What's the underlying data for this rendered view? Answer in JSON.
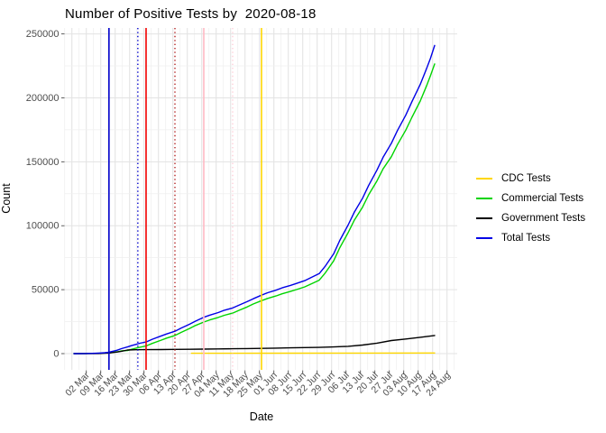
{
  "chart_data": {
    "type": "line",
    "title": "Number of Positive Tests by  2020-08-18",
    "xlabel": "Date",
    "ylabel": "Count",
    "background": "#FFFFFF",
    "grid": "on",
    "legend_position": "right",
    "ylim": [
      0,
      250000
    ],
    "y_ticks": [
      0,
      50000,
      100000,
      150000,
      200000,
      250000
    ],
    "y_tick_labels": [
      "0",
      "50000",
      "100000",
      "150000",
      "200000",
      "250000"
    ],
    "x_first_tick_date": "2020-03-02",
    "x_tick_interval_days": 7,
    "x_tick_labels": [
      "02 Mar",
      "09 Mar",
      "16 Mar",
      "23 Mar",
      "30 Mar",
      "06 Apr",
      "13 Apr",
      "20 Apr",
      "27 Apr",
      "04 May",
      "11 May",
      "18 May",
      "25 May",
      "01 Jun",
      "08 Jun",
      "15 Jun",
      "22 Jun",
      "29 Jun",
      "06 Jul",
      "13 Jul",
      "20 Jul",
      "27 Jul",
      "03 Aug",
      "10 Aug",
      "17 Aug",
      "24 Aug"
    ],
    "vlines": [
      {
        "date": "2020-03-13",
        "color": "#0000CC",
        "style": "solid"
      },
      {
        "date": "2020-03-27",
        "color": "#0000CC",
        "style": "dotted"
      },
      {
        "date": "2020-03-31",
        "color": "#F20000",
        "style": "solid"
      },
      {
        "date": "2020-04-14",
        "color": "#B22222",
        "style": "dotted"
      },
      {
        "date": "2020-04-28",
        "color": "#FFB9C4",
        "style": "solid"
      },
      {
        "date": "2020-05-12",
        "color": "#FFCFD8",
        "style": "dotted"
      },
      {
        "date": "2020-05-26",
        "color": "#FFD700",
        "style": "solid"
      }
    ],
    "series": [
      {
        "name": "CDC Tests",
        "color": "#FFD700",
        "points": [
          [
            "2020-04-22",
            300
          ],
          [
            "2020-05-12",
            300
          ],
          [
            "2020-06-09",
            350
          ],
          [
            "2020-07-14",
            400
          ],
          [
            "2020-08-18",
            500
          ]
        ]
      },
      {
        "name": "Commercial Tests",
        "color": "#00D400",
        "points": [
          [
            "2020-02-25",
            0
          ],
          [
            "2020-03-01",
            80
          ],
          [
            "2020-03-05",
            150
          ],
          [
            "2020-03-08",
            300
          ],
          [
            "2020-03-11",
            450
          ],
          [
            "2020-03-13",
            700
          ],
          [
            "2020-03-15",
            1000
          ],
          [
            "2020-03-17",
            1400
          ],
          [
            "2020-03-19",
            2100
          ],
          [
            "2020-03-22",
            2400
          ],
          [
            "2020-03-24",
            3400
          ],
          [
            "2020-03-26",
            4200
          ],
          [
            "2020-03-28",
            5000
          ],
          [
            "2020-03-31",
            6000
          ],
          [
            "2020-04-03",
            8000
          ],
          [
            "2020-04-07",
            10300
          ],
          [
            "2020-04-10",
            12100
          ],
          [
            "2020-04-14",
            14200
          ],
          [
            "2020-04-17",
            16600
          ],
          [
            "2020-04-21",
            19600
          ],
          [
            "2020-04-24",
            22000
          ],
          [
            "2020-04-28",
            24700
          ],
          [
            "2020-05-01",
            26400
          ],
          [
            "2020-05-05",
            28300
          ],
          [
            "2020-05-08",
            30000
          ],
          [
            "2020-05-12",
            31700
          ],
          [
            "2020-05-15",
            33800
          ],
          [
            "2020-05-19",
            36500
          ],
          [
            "2020-05-22",
            38800
          ],
          [
            "2020-05-26",
            41400
          ],
          [
            "2020-05-29",
            43200
          ],
          [
            "2020-06-02",
            45100
          ],
          [
            "2020-06-05",
            46800
          ],
          [
            "2020-06-09",
            48600
          ],
          [
            "2020-06-12",
            50100
          ],
          [
            "2020-06-16",
            52200
          ],
          [
            "2020-06-19",
            54400
          ],
          [
            "2020-06-23",
            57400
          ],
          [
            "2020-06-26",
            63200
          ],
          [
            "2020-06-30",
            72500
          ],
          [
            "2020-07-03",
            82800
          ],
          [
            "2020-07-07",
            94500
          ],
          [
            "2020-07-10",
            104200
          ],
          [
            "2020-07-14",
            114500
          ],
          [
            "2020-07-17",
            124200
          ],
          [
            "2020-07-21",
            135000
          ],
          [
            "2020-07-24",
            144500
          ],
          [
            "2020-07-28",
            154000
          ],
          [
            "2020-07-31",
            163500
          ],
          [
            "2020-08-04",
            174800
          ],
          [
            "2020-08-07",
            184800
          ],
          [
            "2020-08-11",
            197500
          ],
          [
            "2020-08-14",
            209000
          ],
          [
            "2020-08-16",
            217500
          ],
          [
            "2020-08-18",
            226500
          ]
        ]
      },
      {
        "name": "Government Tests",
        "color": "#000000",
        "points": [
          [
            "2020-02-25",
            0
          ],
          [
            "2020-03-01",
            0
          ],
          [
            "2020-03-08",
            100
          ],
          [
            "2020-03-11",
            250
          ],
          [
            "2020-03-13",
            400
          ],
          [
            "2020-03-15",
            900
          ],
          [
            "2020-03-17",
            1300
          ],
          [
            "2020-03-19",
            1800
          ],
          [
            "2020-03-22",
            2800
          ],
          [
            "2020-03-26",
            3000
          ],
          [
            "2020-03-31",
            3100
          ],
          [
            "2020-04-07",
            3200
          ],
          [
            "2020-04-14",
            3300
          ],
          [
            "2020-04-21",
            3400
          ],
          [
            "2020-04-28",
            3500
          ],
          [
            "2020-05-05",
            3650
          ],
          [
            "2020-05-12",
            3800
          ],
          [
            "2020-05-19",
            3950
          ],
          [
            "2020-05-26",
            4100
          ],
          [
            "2020-06-02",
            4300
          ],
          [
            "2020-06-09",
            4500
          ],
          [
            "2020-06-16",
            4700
          ],
          [
            "2020-06-23",
            4900
          ],
          [
            "2020-06-30",
            5200
          ],
          [
            "2020-07-07",
            5700
          ],
          [
            "2020-07-14",
            6700
          ],
          [
            "2020-07-21",
            8200
          ],
          [
            "2020-07-28",
            10200
          ],
          [
            "2020-08-04",
            11400
          ],
          [
            "2020-08-11",
            12800
          ],
          [
            "2020-08-18",
            14200
          ]
        ]
      },
      {
        "name": "Total Tests",
        "color": "#0000E6",
        "points": [
          [
            "2020-02-25",
            0
          ],
          [
            "2020-03-01",
            80
          ],
          [
            "2020-03-05",
            200
          ],
          [
            "2020-03-08",
            400
          ],
          [
            "2020-03-11",
            700
          ],
          [
            "2020-03-13",
            1100
          ],
          [
            "2020-03-15",
            1900
          ],
          [
            "2020-03-17",
            2700
          ],
          [
            "2020-03-19",
            3900
          ],
          [
            "2020-03-22",
            5200
          ],
          [
            "2020-03-24",
            6300
          ],
          [
            "2020-03-26",
            7200
          ],
          [
            "2020-03-28",
            8100
          ],
          [
            "2020-03-31",
            9100
          ],
          [
            "2020-04-03",
            11200
          ],
          [
            "2020-04-07",
            13600
          ],
          [
            "2020-04-10",
            15400
          ],
          [
            "2020-04-14",
            17500
          ],
          [
            "2020-04-17",
            19900
          ],
          [
            "2020-04-21",
            22900
          ],
          [
            "2020-04-24",
            25400
          ],
          [
            "2020-04-28",
            28400
          ],
          [
            "2020-05-01",
            30100
          ],
          [
            "2020-05-05",
            32100
          ],
          [
            "2020-05-08",
            33900
          ],
          [
            "2020-05-12",
            35700
          ],
          [
            "2020-05-15",
            37800
          ],
          [
            "2020-05-19",
            40600
          ],
          [
            "2020-05-22",
            42900
          ],
          [
            "2020-05-26",
            45700
          ],
          [
            "2020-05-29",
            47600
          ],
          [
            "2020-06-02",
            49600
          ],
          [
            "2020-06-05",
            51400
          ],
          [
            "2020-06-09",
            53300
          ],
          [
            "2020-06-12",
            54900
          ],
          [
            "2020-06-16",
            57100
          ],
          [
            "2020-06-19",
            59400
          ],
          [
            "2020-06-23",
            62600
          ],
          [
            "2020-06-26",
            68500
          ],
          [
            "2020-06-30",
            78000
          ],
          [
            "2020-07-03",
            88500
          ],
          [
            "2020-07-07",
            100500
          ],
          [
            "2020-07-10",
            110500
          ],
          [
            "2020-07-14",
            121500
          ],
          [
            "2020-07-17",
            131500
          ],
          [
            "2020-07-21",
            143500
          ],
          [
            "2020-07-24",
            153500
          ],
          [
            "2020-07-28",
            164500
          ],
          [
            "2020-07-31",
            174500
          ],
          [
            "2020-08-04",
            186500
          ],
          [
            "2020-08-07",
            197000
          ],
          [
            "2020-08-11",
            210500
          ],
          [
            "2020-08-14",
            222500
          ],
          [
            "2020-08-16",
            231000
          ],
          [
            "2020-08-18",
            241000
          ]
        ]
      }
    ]
  }
}
